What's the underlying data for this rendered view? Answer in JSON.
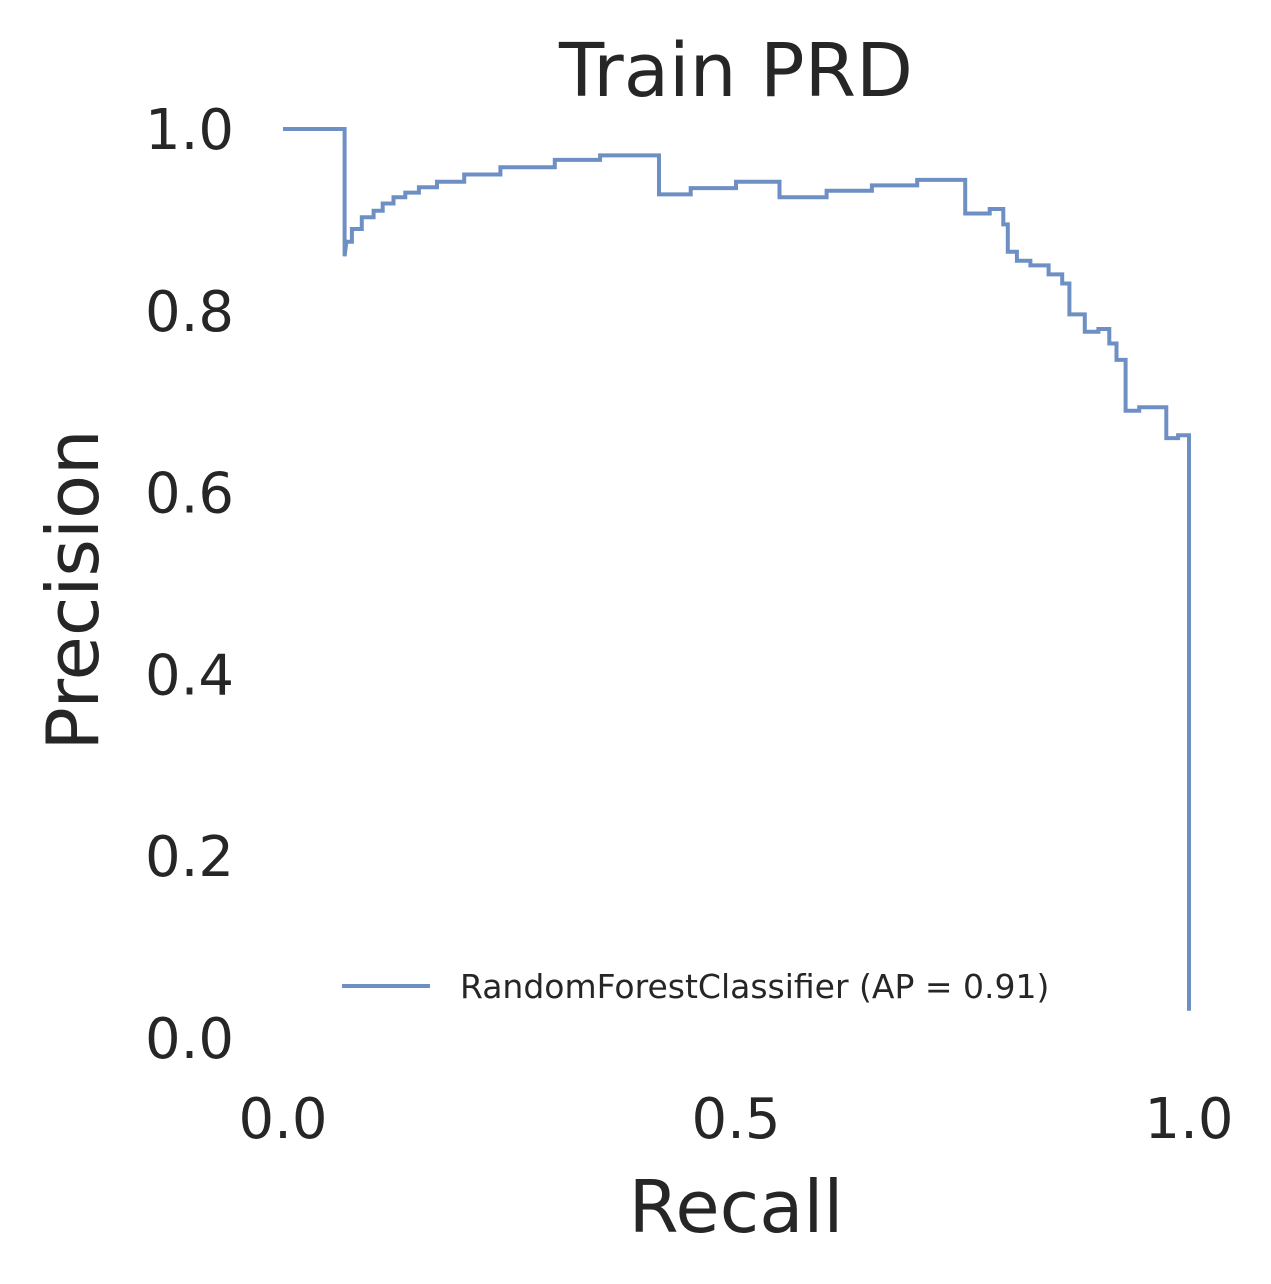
{
  "chart_data": {
    "type": "line",
    "title": "Train PRD",
    "xlabel": "Recall",
    "ylabel": "Precision",
    "xlim": [
      0.0,
      1.0
    ],
    "ylim": [
      0.0,
      1.0
    ],
    "xticks": [
      "0.0",
      "0.5",
      "1.0"
    ],
    "yticks": [
      "0.0",
      "0.2",
      "0.4",
      "0.6",
      "0.8",
      "1.0"
    ],
    "grid": false,
    "legend_position": "lower-right",
    "step": "post",
    "series": [
      {
        "name": "RandomForestClassifier (AP = 0.91)",
        "color": "#6e8fc3",
        "points": [
          [
            0.0,
            1.0
          ],
          [
            0.068,
            1.0
          ],
          [
            0.068,
            0.86
          ],
          [
            0.07,
            0.876
          ],
          [
            0.076,
            0.876
          ],
          [
            0.076,
            0.89
          ],
          [
            0.087,
            0.89
          ],
          [
            0.087,
            0.903
          ],
          [
            0.1,
            0.903
          ],
          [
            0.1,
            0.91
          ],
          [
            0.11,
            0.91
          ],
          [
            0.11,
            0.918
          ],
          [
            0.122,
            0.918
          ],
          [
            0.122,
            0.925
          ],
          [
            0.135,
            0.925
          ],
          [
            0.135,
            0.93
          ],
          [
            0.15,
            0.93
          ],
          [
            0.15,
            0.936
          ],
          [
            0.17,
            0.936
          ],
          [
            0.17,
            0.942
          ],
          [
            0.2,
            0.942
          ],
          [
            0.2,
            0.95
          ],
          [
            0.24,
            0.95
          ],
          [
            0.24,
            0.958
          ],
          [
            0.3,
            0.958
          ],
          [
            0.3,
            0.966
          ],
          [
            0.35,
            0.966
          ],
          [
            0.35,
            0.971
          ],
          [
            0.415,
            0.971
          ],
          [
            0.415,
            0.928
          ],
          [
            0.45,
            0.928
          ],
          [
            0.45,
            0.935
          ],
          [
            0.5,
            0.935
          ],
          [
            0.5,
            0.942
          ],
          [
            0.548,
            0.942
          ],
          [
            0.548,
            0.925
          ],
          [
            0.6,
            0.925
          ],
          [
            0.6,
            0.932
          ],
          [
            0.65,
            0.932
          ],
          [
            0.65,
            0.938
          ],
          [
            0.7,
            0.938
          ],
          [
            0.7,
            0.944
          ],
          [
            0.753,
            0.944
          ],
          [
            0.753,
            0.907
          ],
          [
            0.78,
            0.907
          ],
          [
            0.78,
            0.912
          ],
          [
            0.795,
            0.912
          ],
          [
            0.795,
            0.895
          ],
          [
            0.8,
            0.895
          ],
          [
            0.8,
            0.865
          ],
          [
            0.81,
            0.865
          ],
          [
            0.81,
            0.855
          ],
          [
            0.825,
            0.855
          ],
          [
            0.825,
            0.85
          ],
          [
            0.845,
            0.85
          ],
          [
            0.845,
            0.84
          ],
          [
            0.86,
            0.84
          ],
          [
            0.86,
            0.83
          ],
          [
            0.868,
            0.83
          ],
          [
            0.868,
            0.796
          ],
          [
            0.885,
            0.796
          ],
          [
            0.885,
            0.777
          ],
          [
            0.9,
            0.777
          ],
          [
            0.9,
            0.78
          ],
          [
            0.912,
            0.78
          ],
          [
            0.912,
            0.764
          ],
          [
            0.92,
            0.764
          ],
          [
            0.92,
            0.746
          ],
          [
            0.93,
            0.746
          ],
          [
            0.93,
            0.69
          ],
          [
            0.945,
            0.69
          ],
          [
            0.945,
            0.694
          ],
          [
            0.975,
            0.694
          ],
          [
            0.975,
            0.66
          ],
          [
            0.988,
            0.66
          ],
          [
            0.988,
            0.663
          ],
          [
            1.0,
            0.663
          ],
          [
            1.0,
            0.03
          ]
        ]
      }
    ]
  }
}
